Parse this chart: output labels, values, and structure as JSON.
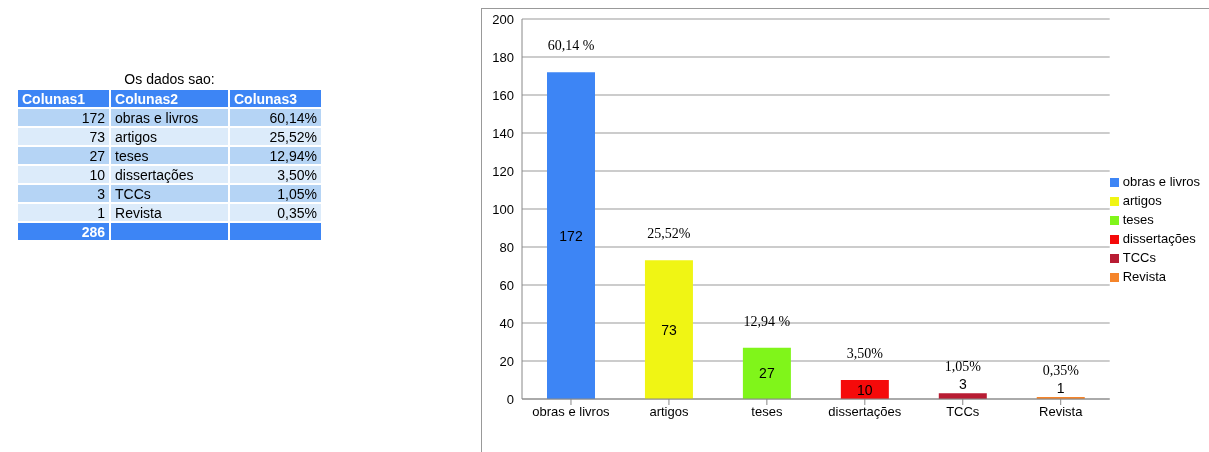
{
  "chart_data": {
    "type": "bar",
    "categories": [
      "obras e livros",
      "artigos",
      "teses",
      "dissertações",
      "TCCs",
      "Revista"
    ],
    "series": [
      {
        "name": "obras e livros",
        "color": "#3d85f5",
        "values": [
          172,
          null,
          null,
          null,
          null,
          null
        ]
      },
      {
        "name": "artigos",
        "color": "#f0f514",
        "values": [
          null,
          73,
          null,
          null,
          null,
          null
        ]
      },
      {
        "name": "teses",
        "color": "#80f51a",
        "values": [
          null,
          null,
          27,
          null,
          null,
          null
        ]
      },
      {
        "name": "dissertações",
        "color": "#f50a0a",
        "values": [
          null,
          null,
          null,
          10,
          null,
          null
        ]
      },
      {
        "name": "TCCs",
        "color": "#b81c33",
        "values": [
          null,
          null,
          null,
          null,
          3,
          null
        ]
      },
      {
        "name": "Revista",
        "color": "#f5842a",
        "values": [
          null,
          null,
          null,
          null,
          null,
          1
        ]
      }
    ],
    "stacked": true,
    "ylim": [
      0,
      200
    ],
    "yticks": [
      0,
      20,
      40,
      60,
      80,
      100,
      120,
      140,
      160,
      180,
      200
    ],
    "grid": "y",
    "legend": "right",
    "data_labels": true,
    "annotations": [
      "Os dados sao:",
      "Colunas1",
      "Colunas2",
      "Colunas3",
      "172",
      "73",
      "27",
      "10",
      "3",
      "1",
      "60,14%",
      "25,52%",
      "12,94%",
      "3,50%",
      "1,05%",
      "0,35%",
      "286",
      "60,14 %",
      "25,52%",
      "12,94 %",
      "3,50%",
      "1,05%",
      "0,35%"
    ]
  }
}
